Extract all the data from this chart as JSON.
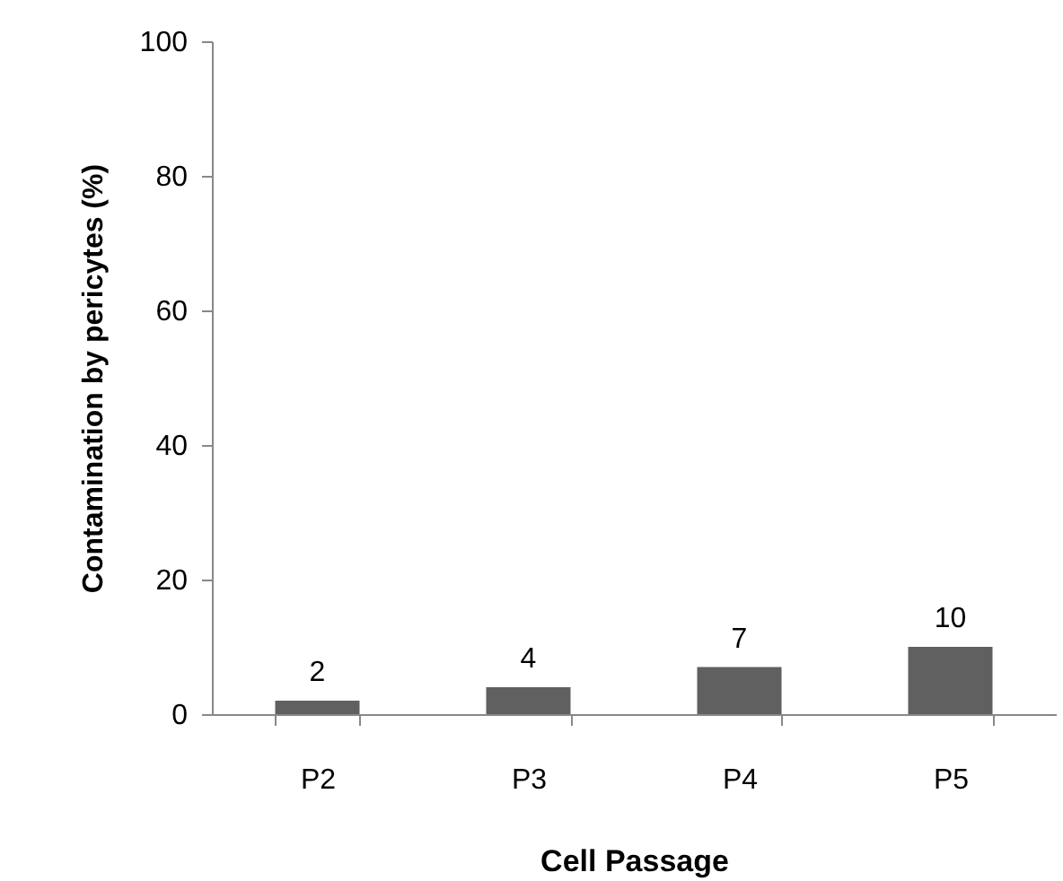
{
  "chart_data": {
    "type": "bar",
    "xlabel": "Cell Passage",
    "ylabel": "Contamination by pericytes (%)",
    "categories": [
      "P2",
      "P3",
      "P4",
      "P5"
    ],
    "values": [
      2,
      4,
      7,
      10
    ],
    "color": "#606060",
    "ylim": [
      0,
      100
    ],
    "yticks": [
      0,
      20,
      40,
      60,
      80,
      100
    ],
    "grid": false,
    "data_labels": true
  }
}
